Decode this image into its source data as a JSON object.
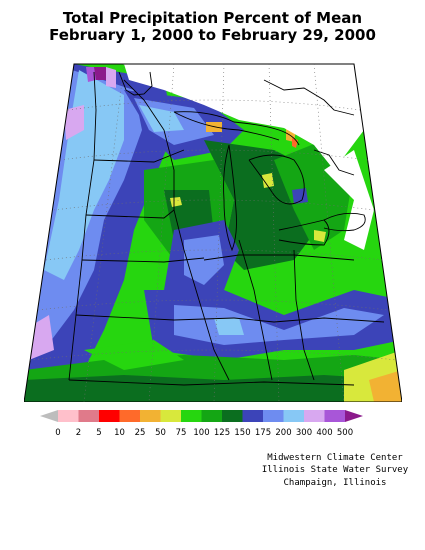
{
  "title": {
    "line1": "Total Precipitation Percent of Mean",
    "line2": "February 1, 2000 to February 29, 2000"
  },
  "legend": {
    "labels": [
      "0",
      "2",
      "5",
      "10",
      "25",
      "50",
      "75",
      "100",
      "125",
      "150",
      "175",
      "200",
      "300",
      "400",
      "500"
    ],
    "colors": [
      "#bdbdbd",
      "#ffc0cb",
      "#e07a8a",
      "#ff0000",
      "#ff6a2a",
      "#f2b233",
      "#d8e83c",
      "#26d60f",
      "#14a614",
      "#0b6e1f",
      "#3c44b8",
      "#6e8cf0",
      "#87c8f5",
      "#d8a8f0",
      "#a856d8",
      "#8b1a8b"
    ]
  },
  "map": {
    "colors": {
      "g100": "#26d60f",
      "g125": "#14a614",
      "g150": "#0b6e1f",
      "b175": "#3c44b8",
      "b200": "#6e8cf0",
      "c300": "#87c8f5",
      "p400": "#d8a8f0",
      "p500": "#a856d8",
      "m": "#8b1a8b",
      "y75": "#d8e83c",
      "o50": "#f2b233",
      "o25": "#ff6a2a"
    }
  },
  "credits": {
    "line1": "Midwestern Climate Center",
    "line2": "Illinois State Water Survey",
    "line3": "Champaign, Illinois"
  }
}
